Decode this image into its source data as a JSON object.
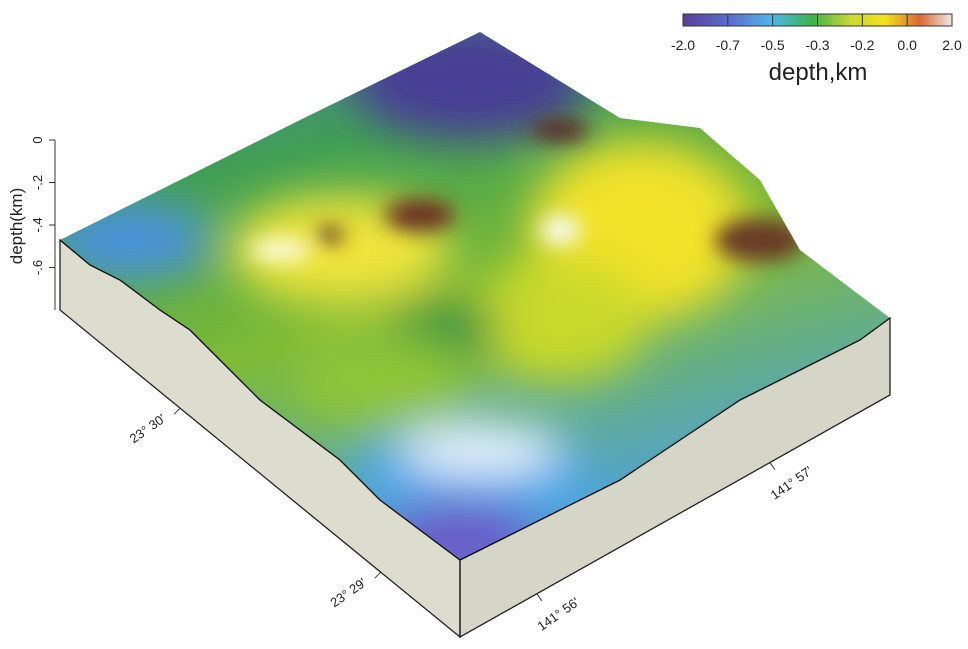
{
  "chart_data": {
    "type": "surface",
    "colorbar": {
      "title": "depth,km",
      "ticks": [
        {
          "value": -2,
          "label": "-2.0"
        },
        {
          "value": -0.7,
          "label": "-0.7"
        },
        {
          "value": -0.5,
          "label": "-0.5"
        },
        {
          "value": -0.3,
          "label": "-0.3"
        },
        {
          "value": -0.2,
          "label": "-0.2"
        },
        {
          "value": 0,
          "label": "0.0"
        },
        {
          "value": 2,
          "label": "2.0"
        }
      ]
    },
    "zlabel": "depth(km)",
    "zlim": [
      -0.8,
      0
    ],
    "zticks": [
      {
        "value": 0,
        "label": "0"
      },
      {
        "value": -0.2,
        "label": "-.2"
      },
      {
        "value": -0.4,
        "label": "-.4"
      },
      {
        "value": -0.6,
        "label": "-.6"
      }
    ],
    "ylim": [
      23.4767,
      23.51
    ],
    "yticks": [
      {
        "value": 23.4833,
        "label": "23° 29'"
      },
      {
        "value": 23.5,
        "label": "23° 30'"
      }
    ],
    "xlim": [
      141.9278,
      141.9586
    ],
    "xticks": [
      {
        "value": 141.9333,
        "label": "141° 56'"
      },
      {
        "value": 141.95,
        "label": "141° 57'"
      }
    ]
  }
}
